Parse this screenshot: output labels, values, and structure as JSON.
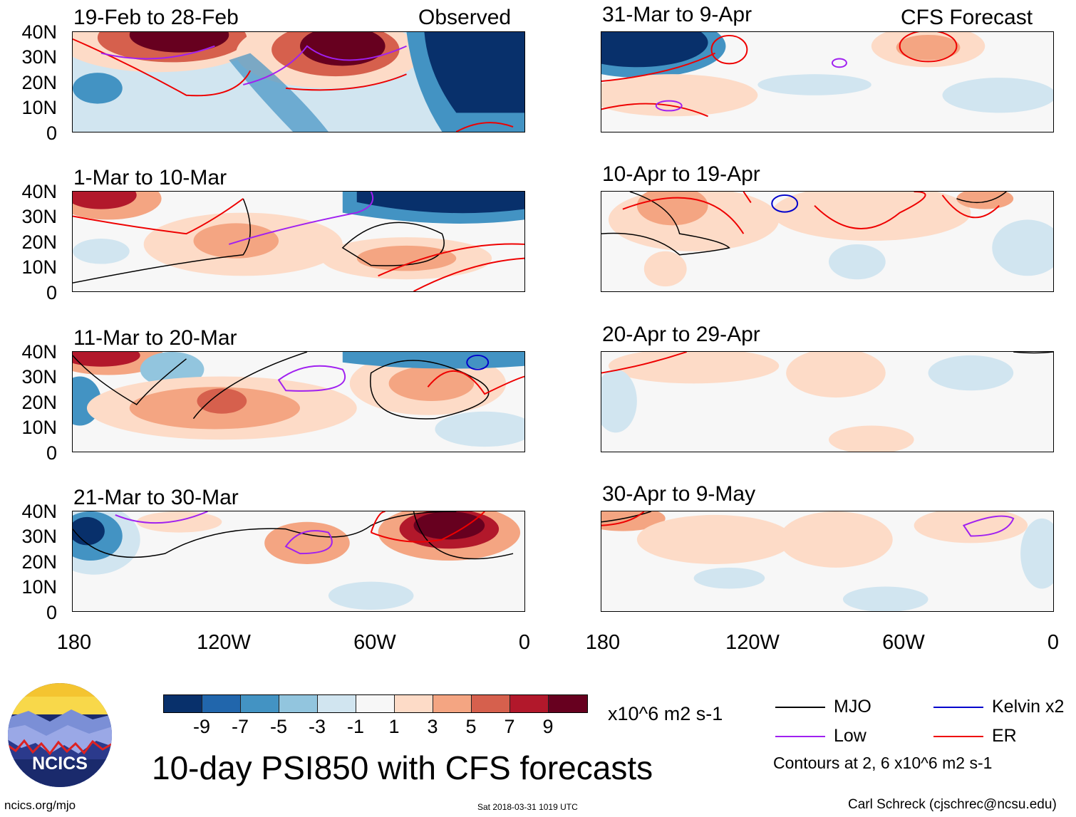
{
  "panels": {
    "observed_header": "Observed",
    "forecast_header": "CFS Forecast",
    "left": [
      {
        "title": "19-Feb to 28-Feb"
      },
      {
        "title": "1-Mar to 10-Mar"
      },
      {
        "title": "11-Mar to 20-Mar"
      },
      {
        "title": "21-Mar to 30-Mar"
      }
    ],
    "right": [
      {
        "title": "31-Mar to 9-Apr"
      },
      {
        "title": "10-Apr to 19-Apr"
      },
      {
        "title": "20-Apr to 29-Apr"
      },
      {
        "title": "30-Apr to 9-May"
      }
    ]
  },
  "axes": {
    "lat_labels": [
      "40N",
      "30N",
      "20N",
      "10N",
      "0"
    ],
    "lon_labels": [
      "180",
      "120W",
      "60W",
      "0"
    ]
  },
  "colorbar": {
    "colors": [
      "#08306b",
      "#2166ac",
      "#4393c3",
      "#92c5de",
      "#d1e5f0",
      "#f7f7f7",
      "#fddbc7",
      "#f4a582",
      "#d6604d",
      "#b2182b",
      "#67001f"
    ],
    "labels": [
      "-9",
      "-7",
      "-5",
      "-3",
      "-1",
      "1",
      "3",
      "5",
      "7",
      "9"
    ],
    "units": "x10^6 m2 s-1"
  },
  "legend": {
    "mjo": "MJO",
    "low": "Low",
    "kelvin": "Kelvin x2",
    "er": "ER",
    "note": "Contours at 2, 6 x10^6 m2 s-1",
    "colors": {
      "mjo": "#000000",
      "low": "#a020f0",
      "kelvin": "#0000cc",
      "er": "#ee0000"
    }
  },
  "logo": {
    "text": "NCICS"
  },
  "main_title": "10-day PSI850 with CFS forecasts",
  "footer": {
    "url": "ncics.org/mjo",
    "timestamp": "Sat 2018-03-31 1019 UTC",
    "author": "Carl Schreck (cjschrec@ncsu.edu)"
  }
}
